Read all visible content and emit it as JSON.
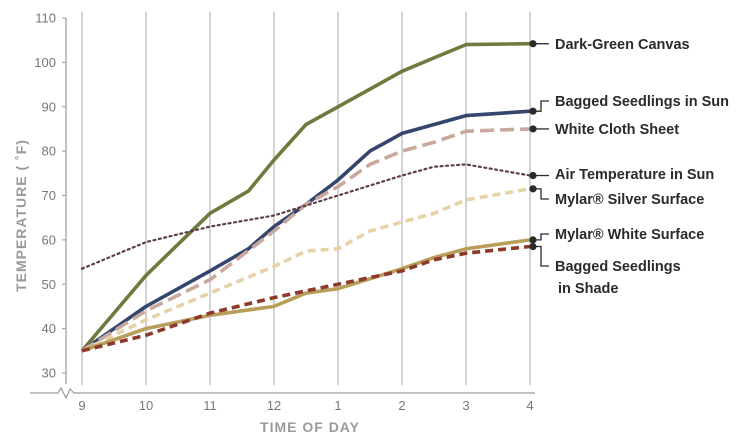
{
  "chart_data": {
    "type": "line",
    "title": "",
    "xlabel": "TIME OF DAY",
    "ylabel": "TEMPERATURE ( ˚F)",
    "x_tick_labels": [
      "9",
      "10",
      "11",
      "12",
      "1",
      "2",
      "3",
      "4"
    ],
    "y_ticks": [
      30,
      40,
      50,
      60,
      70,
      80,
      90,
      100,
      110
    ],
    "ylim": [
      30,
      110
    ],
    "y_axis_break": true,
    "grid": "vertical",
    "legend": "right, labels at line ends",
    "series": [
      {
        "name": "Dark-Green Canvas",
        "color": "#6e7a3e",
        "style": "solid",
        "x": [
          9,
          10,
          11,
          11.6,
          12,
          12.5,
          1,
          2,
          2.5,
          3,
          4
        ],
        "values": [
          35,
          52,
          66,
          71,
          78,
          86,
          90,
          98,
          101,
          104,
          104.2
        ]
      },
      {
        "name": "Bagged Seedlings in Sun",
        "color": "#34466e",
        "style": "solid",
        "x": [
          9,
          10,
          11,
          11.6,
          12,
          12.5,
          1,
          1.5,
          2,
          2.5,
          3,
          4
        ],
        "values": [
          35,
          45,
          53,
          58,
          63,
          68,
          73.5,
          80,
          84,
          86,
          88,
          89
        ]
      },
      {
        "name": "White Cloth Sheet",
        "color": "#c9a89e",
        "style": "long-dash",
        "x": [
          9,
          10,
          11,
          12,
          12.5,
          1,
          1.5,
          2,
          2.5,
          3,
          4
        ],
        "values": [
          35,
          44,
          51,
          62,
          68,
          72,
          77,
          80,
          82,
          84.5,
          85
        ]
      },
      {
        "name": "Air Temperature in Sun",
        "color": "#5e3f3f",
        "style": "dotted",
        "x": [
          9,
          10,
          11,
          12,
          1,
          2,
          2.5,
          3,
          4
        ],
        "values": [
          53.5,
          59.5,
          63,
          65.5,
          70,
          74.5,
          76.5,
          77,
          74.5
        ]
      },
      {
        "name": "Mylar® Silver Surface",
        "color": "#e6d2a6",
        "style": "dashed",
        "x": [
          9,
          10,
          11,
          12,
          12.5,
          1,
          1.5,
          2,
          2.5,
          3,
          4
        ],
        "values": [
          35,
          42,
          48,
          54,
          57.5,
          58,
          62,
          64,
          66,
          69,
          71.5
        ]
      },
      {
        "name": "Mylar® White Surface",
        "color": "#b89e5a",
        "style": "solid",
        "x": [
          9,
          10,
          11,
          12,
          12.5,
          1,
          2,
          2.5,
          3,
          4
        ],
        "values": [
          35,
          40,
          43,
          45,
          48,
          49,
          53.5,
          56,
          58,
          60
        ]
      },
      {
        "name": "Bagged Seedlings in Shade",
        "color": "#8c3a2a",
        "style": "dashed",
        "x": [
          9,
          10,
          11,
          12,
          12.5,
          1,
          2,
          2.5,
          3,
          4
        ],
        "values": [
          35,
          38.5,
          43.5,
          47,
          48.5,
          50,
          53,
          55.5,
          57,
          58.5
        ]
      }
    ],
    "legend_entries": [
      {
        "label": "Dark-Green Canvas",
        "lines": [
          "Dark-Green Canvas"
        ]
      },
      {
        "label": "Bagged Seedlings in Sun",
        "lines": [
          "Bagged Seedlings in Sun"
        ]
      },
      {
        "label": "White Cloth Sheet",
        "lines": [
          "White Cloth Sheet"
        ]
      },
      {
        "label": "Air Temperature in Sun",
        "lines": [
          "Air Temperature in Sun"
        ]
      },
      {
        "label": "Mylar® Silver Surface",
        "lines": [
          "Mylar® Silver Surface"
        ]
      },
      {
        "label": "Mylar® White Surface",
        "lines": [
          "Mylar® White Surface"
        ]
      },
      {
        "label": "Bagged Seedlings in Shade",
        "lines": [
          "Bagged Seedlings",
          "in Shade"
        ]
      }
    ]
  }
}
